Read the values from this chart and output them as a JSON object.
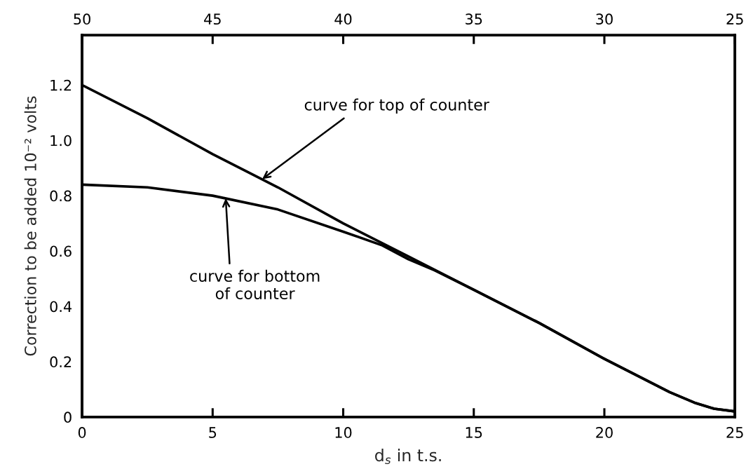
{
  "chart_data": {
    "type": "line",
    "xlabel": "d$_{s}$ in t.s.",
    "ylabel": "Correction to be added 10⁻² volts",
    "xlim": [
      0,
      25
    ],
    "xticks": [
      0,
      5,
      10,
      15,
      20,
      25
    ],
    "x2lim": [
      50,
      25
    ],
    "x2ticks": [
      50,
      45,
      40,
      35,
      30,
      25
    ],
    "ylim": [
      0,
      1.38
    ],
    "yticks": [
      0,
      0.2,
      0.4,
      0.6,
      0.8,
      {
        "value": 1,
        "label": "1.0"
      },
      1.2
    ],
    "series": [
      {
        "color": "#000000",
        "x": [
          0,
          2.5,
          5,
          7.5,
          10,
          12.5,
          15,
          17.5,
          20,
          22.5,
          23.5,
          24.2,
          25
        ],
        "values": [
          1.2,
          1.08,
          0.95,
          0.83,
          0.7,
          0.58,
          0.46,
          0.34,
          0.21,
          0.09,
          0.05,
          0.03,
          0.02
        ]
      },
      {
        "color": "#000000",
        "x": [
          0,
          2.5,
          5,
          7.5,
          10,
          11.5,
          12.5,
          13.5,
          15,
          17.5,
          20,
          22.5,
          23.5,
          24.2,
          25
        ],
        "values": [
          0.84,
          0.83,
          0.8,
          0.75,
          0.67,
          0.62,
          0.57,
          0.53,
          0.46,
          0.34,
          0.21,
          0.09,
          0.05,
          0.03,
          0.02
        ]
      }
    ],
    "annotations": [
      {
        "text": "curve for top of counter",
        "x": 6.9,
        "y": 0.86
      },
      {
        "text": "curve for bottom\nof counter",
        "x": 5.5,
        "y": 0.79
      }
    ],
    "grid": false,
    "marker": "none",
    "line_style": "solid"
  }
}
